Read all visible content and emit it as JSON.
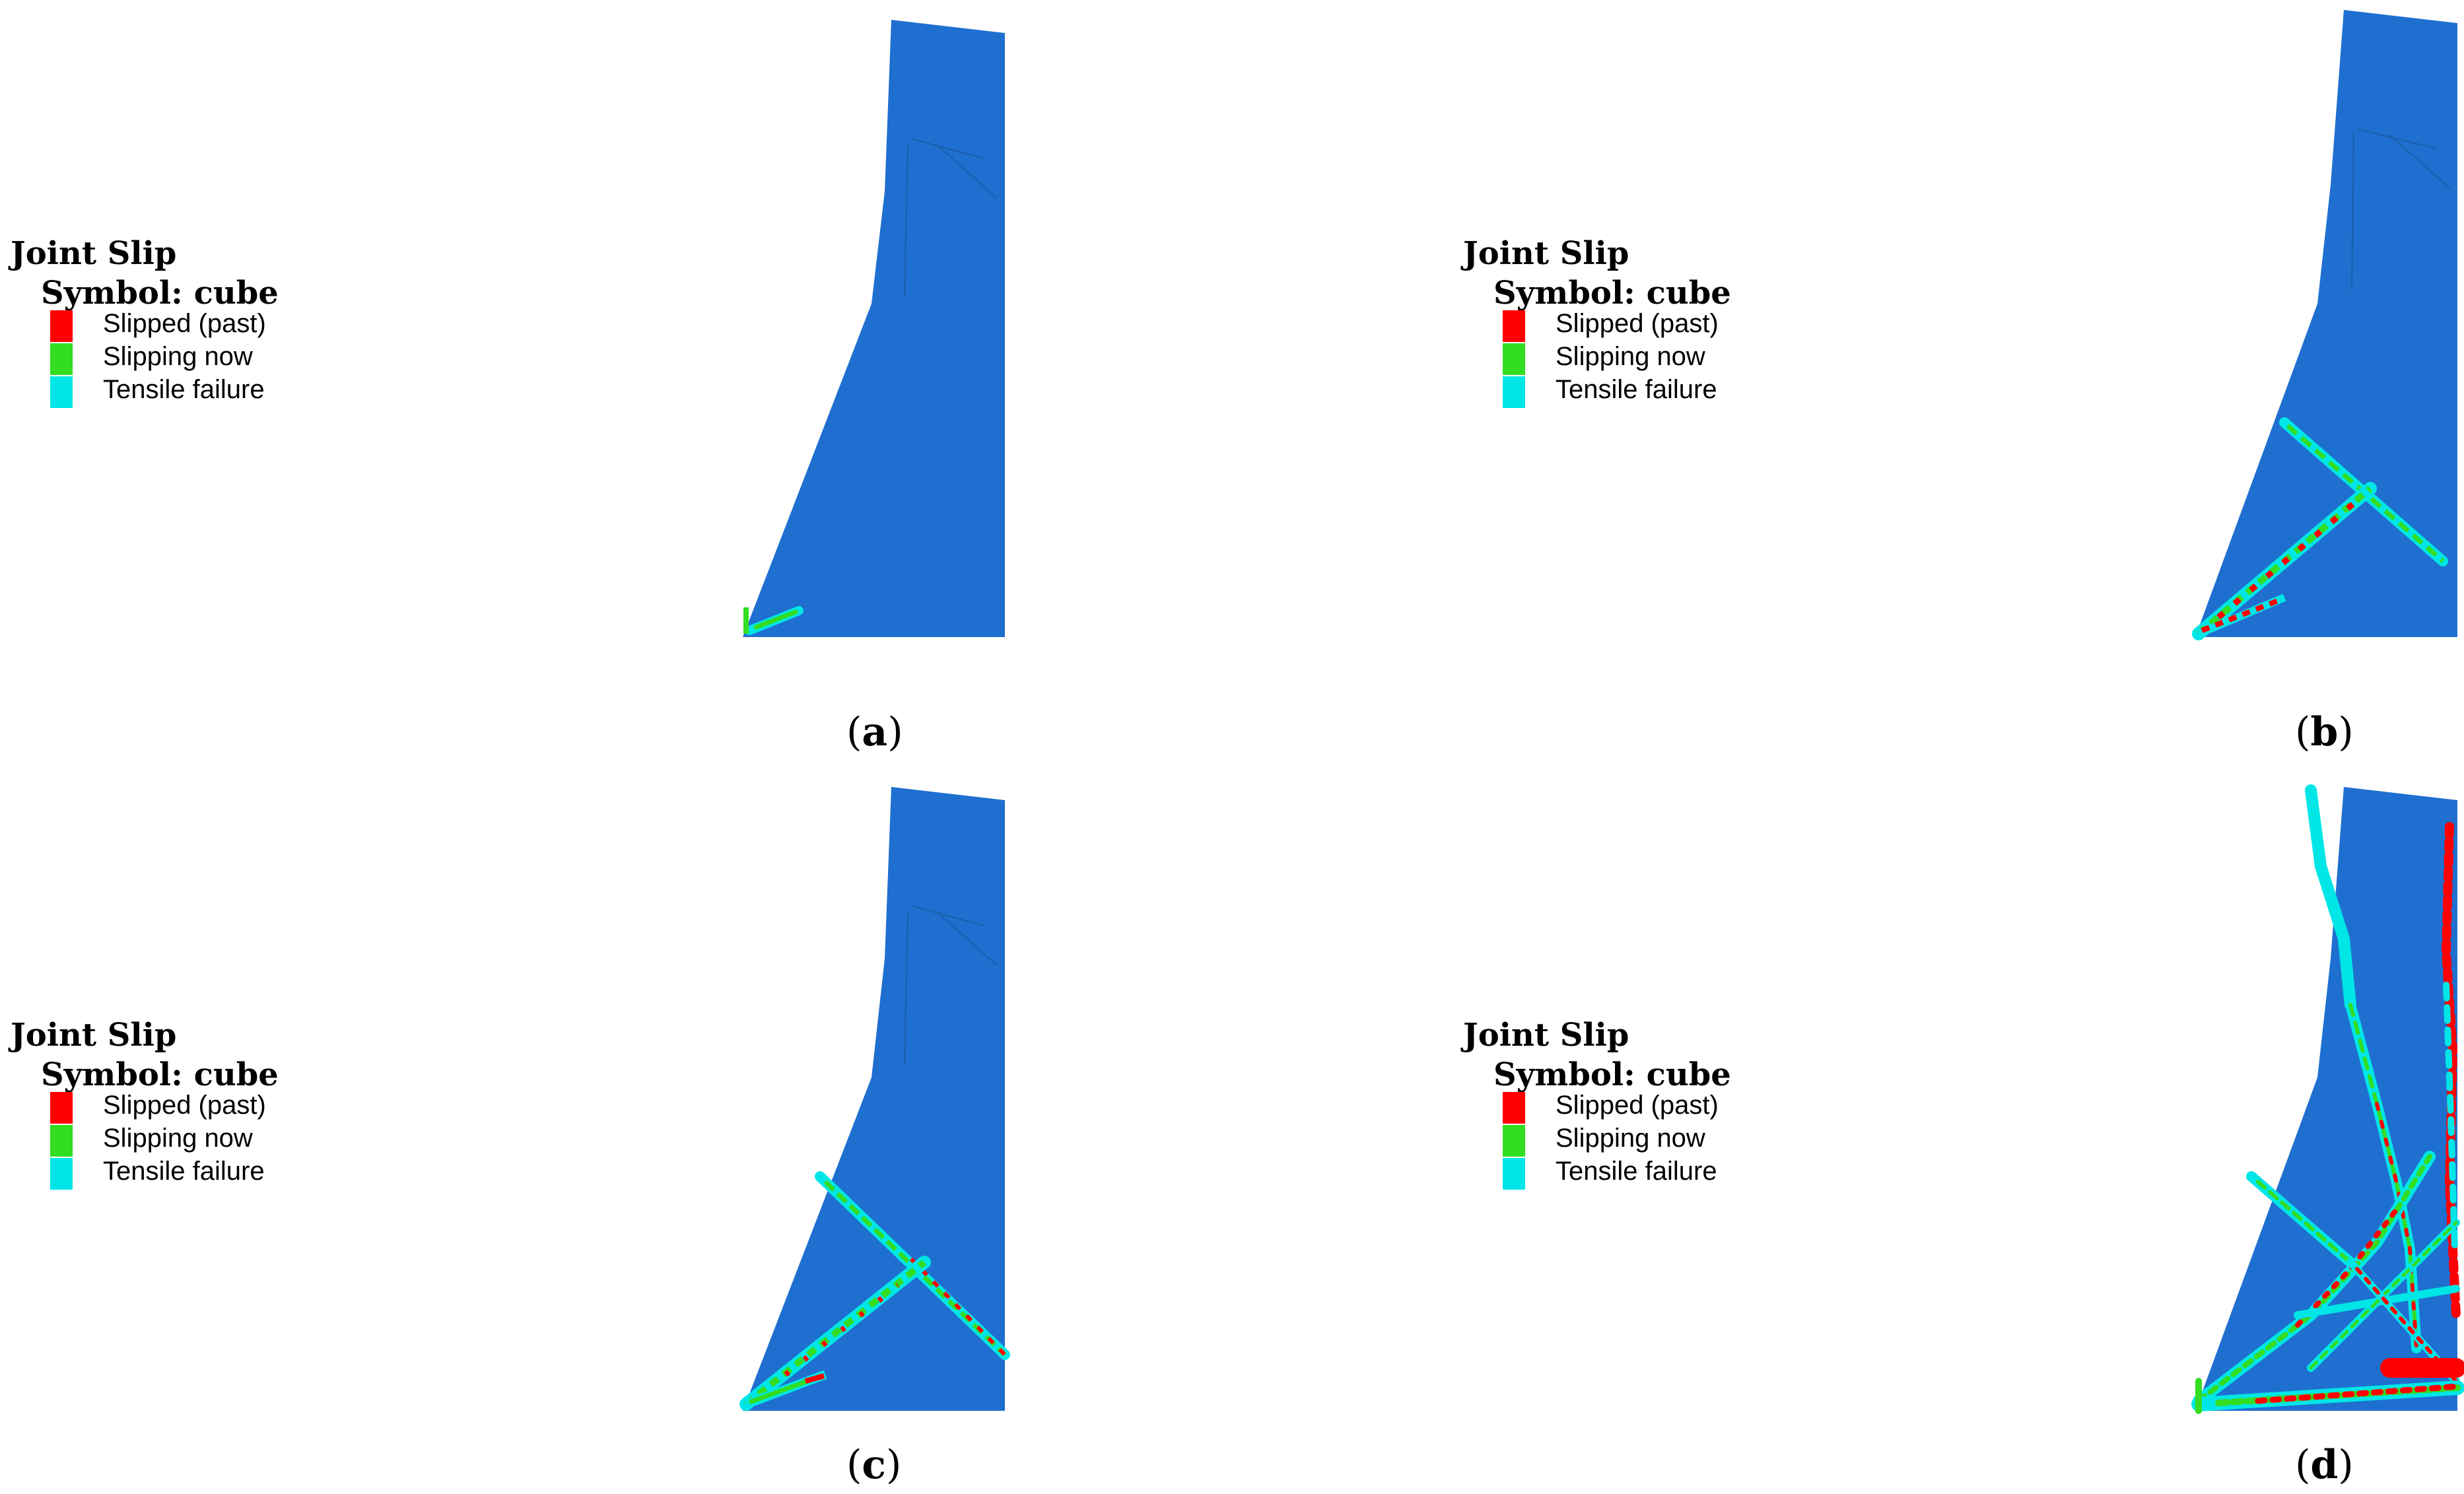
{
  "legend": {
    "title": "Joint Slip",
    "symbol": "Symbol: cube",
    "items": [
      {
        "label": "Slipped (past)",
        "color": "#ff0000"
      },
      {
        "label": "Slipping now",
        "color": "#33dd22"
      },
      {
        "label": "Tensile failure",
        "color": "#00e6e6"
      }
    ]
  },
  "colors": {
    "rock": "#1f6fd0",
    "slipped": "#ff0000",
    "slipping": "#33dd22",
    "tensile": "#00e6e6"
  },
  "panels": [
    {
      "id": "a",
      "label_open": "(",
      "label_letter": "a",
      "label_close": ")"
    },
    {
      "id": "b",
      "label_open": "(",
      "label_letter": "b",
      "label_close": ")"
    },
    {
      "id": "c",
      "label_open": "(",
      "label_letter": "c",
      "label_close": ")"
    },
    {
      "id": "d",
      "label_open": "(",
      "label_letter": "d",
      "label_close": ")"
    }
  ]
}
